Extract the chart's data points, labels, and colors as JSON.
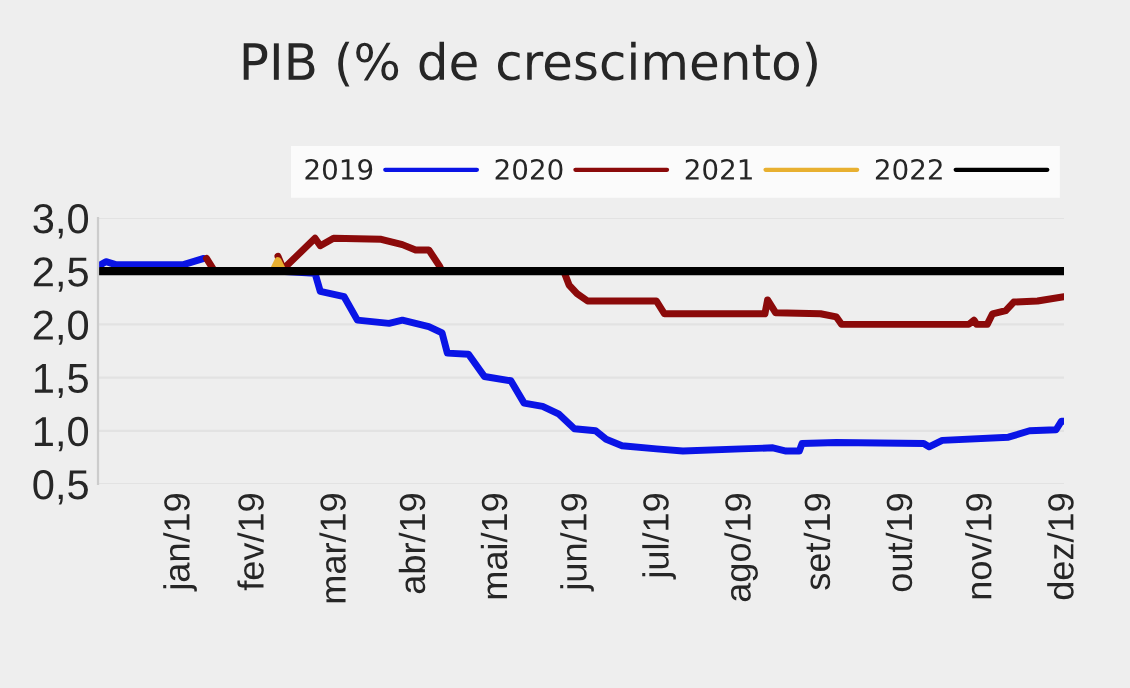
{
  "chart_data": {
    "type": "line",
    "title": "PIB (% de crescimento)",
    "xlim": [
      "2018-12-31",
      "2019-12-31"
    ],
    "xticks": [
      {
        "value": "2019-01-31",
        "label": "jan/19"
      },
      {
        "value": "2019-02-28",
        "label": "fev/19"
      },
      {
        "value": "2019-03-31",
        "label": "mar/19"
      },
      {
        "value": "2019-04-30",
        "label": "abr/19"
      },
      {
        "value": "2019-05-31",
        "label": "mai/19"
      },
      {
        "value": "2019-06-30",
        "label": "jun/19"
      },
      {
        "value": "2019-07-31",
        "label": "jul/19"
      },
      {
        "value": "2019-08-31",
        "label": "ago/19"
      },
      {
        "value": "2019-09-30",
        "label": "set/19"
      },
      {
        "value": "2019-10-31",
        "label": "out/19"
      },
      {
        "value": "2019-11-30",
        "label": "nov/19"
      },
      {
        "value": "2019-12-31",
        "label": "dez/19"
      }
    ],
    "ylim": [
      0.5,
      3.0
    ],
    "yticks": [
      {
        "value": 0.5,
        "label": "0,5"
      },
      {
        "value": 1.0,
        "label": "1,0"
      },
      {
        "value": 1.5,
        "label": "1,5"
      },
      {
        "value": 2.0,
        "label": "2,0"
      },
      {
        "value": 2.5,
        "label": "2,5"
      },
      {
        "value": 3.0,
        "label": "3,0"
      }
    ],
    "grid": "y",
    "legend": "top right",
    "marker": "none",
    "line_style": "solid",
    "series": [
      {
        "name": "2019",
        "color": "#0a14e6",
        "x": [
          "2019-01-01",
          "2019-01-03",
          "2019-01-07",
          "2019-02-01",
          "2019-02-09",
          "2019-02-10",
          "2019-03-10",
          "2019-03-23",
          "2019-03-25",
          "2019-04-03",
          "2019-04-08",
          "2019-04-20",
          "2019-04-25",
          "2019-05-05",
          "2019-05-10",
          "2019-05-12",
          "2019-05-20",
          "2019-05-26",
          "2019-06-05",
          "2019-06-10",
          "2019-06-17",
          "2019-06-23",
          "2019-06-29",
          "2019-07-07",
          "2019-07-11",
          "2019-07-17",
          "2019-07-30",
          "2019-08-09",
          "2019-08-31",
          "2019-09-12",
          "2019-09-17",
          "2019-09-22",
          "2019-09-23",
          "2019-10-06",
          "2019-11-08",
          "2019-11-10",
          "2019-11-15",
          "2019-12-10",
          "2019-12-18",
          "2019-12-28",
          "2019-12-30",
          "2019-12-31"
        ],
        "values": [
          2.56,
          2.59,
          2.56,
          2.56,
          2.62,
          null,
          2.5,
          2.48,
          2.31,
          2.26,
          2.04,
          2.01,
          2.04,
          1.98,
          1.92,
          1.73,
          1.72,
          1.51,
          1.47,
          1.26,
          1.23,
          1.16,
          1.02,
          1.0,
          0.92,
          0.86,
          0.83,
          0.81,
          0.83,
          0.84,
          0.81,
          0.81,
          0.88,
          0.89,
          0.88,
          0.85,
          0.91,
          0.94,
          1.0,
          1.01,
          1.09,
          1.09
        ]
      },
      {
        "name": "2020",
        "color": "#8b0a0a",
        "x": [
          "2019-02-10",
          "2019-02-13",
          "2019-02-14",
          "2019-03-08",
          "2019-03-09",
          "2019-03-11",
          "2019-03-23",
          "2019-03-25",
          "2019-03-30",
          "2019-04-17",
          "2019-04-25",
          "2019-04-30",
          "2019-05-05",
          "2019-05-09",
          "2019-05-10",
          "2019-05-11",
          "2019-06-24",
          "2019-06-25",
          "2019-06-27",
          "2019-06-30",
          "2019-07-04",
          "2019-07-30",
          "2019-08-02",
          "2019-09-09",
          "2019-09-10",
          "2019-09-13",
          "2019-09-30",
          "2019-10-06",
          "2019-10-08",
          "2019-11-25",
          "2019-11-27",
          "2019-11-28",
          "2019-12-02",
          "2019-12-04",
          "2019-12-09",
          "2019-12-12",
          "2019-12-21",
          "2019-12-31"
        ],
        "values": [
          2.62,
          2.5,
          null,
          null,
          2.64,
          2.52,
          2.81,
          2.74,
          2.81,
          2.8,
          2.75,
          2.7,
          2.7,
          2.55,
          2.5,
          null,
          null,
          2.5,
          2.37,
          2.29,
          2.22,
          2.22,
          2.1,
          2.1,
          2.23,
          2.11,
          2.1,
          2.07,
          2.0,
          2.0,
          2.04,
          2.0,
          2.0,
          2.1,
          2.13,
          2.21,
          2.22,
          2.26
        ]
      },
      {
        "name": "2021",
        "color": "#e8b030",
        "x": [
          "2019-03-07",
          "2019-03-09",
          "2019-03-11"
        ],
        "values": [
          2.5,
          2.6,
          2.5
        ]
      },
      {
        "name": "2022",
        "color": "#000000",
        "x": [
          "2019-01-01",
          "2019-12-31"
        ],
        "values": [
          2.5,
          2.5
        ]
      }
    ]
  }
}
